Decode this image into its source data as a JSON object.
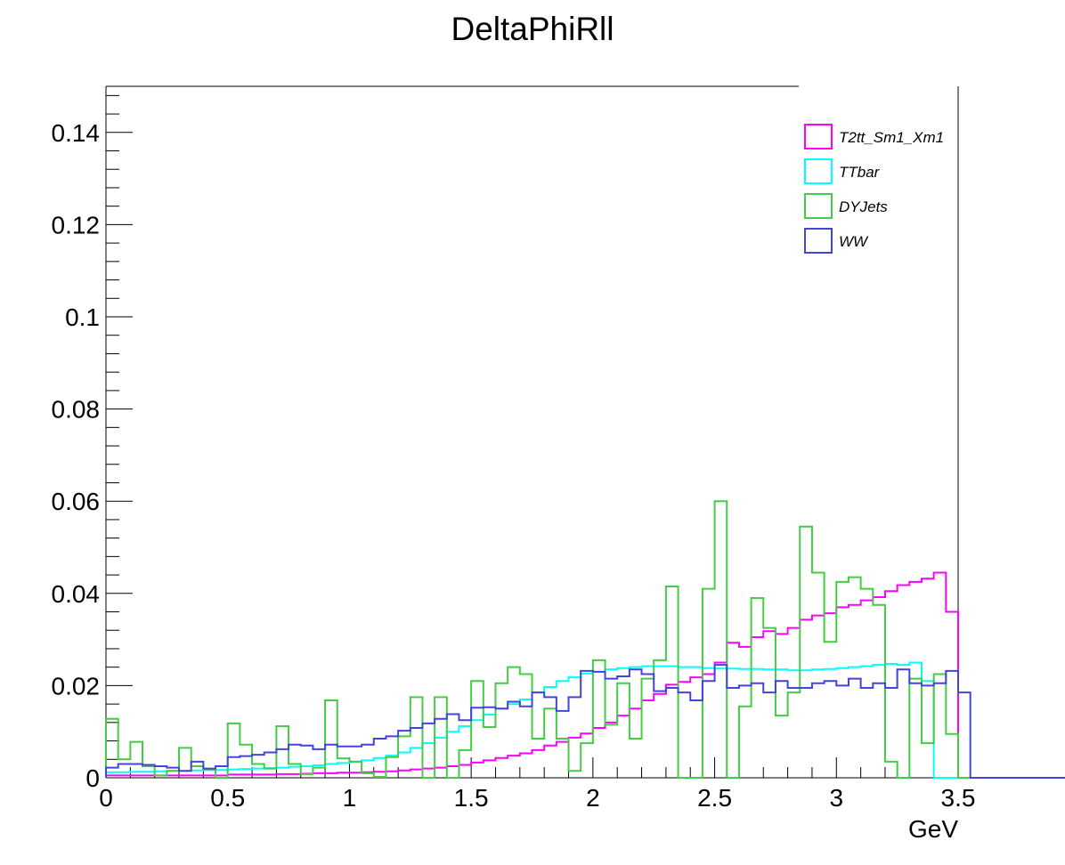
{
  "chart_data": {
    "type": "histogram",
    "title": "DeltaPhiRll",
    "xlabel": "GeV",
    "ylabel": "",
    "xlim": [
      0,
      3.5
    ],
    "ylim": [
      0,
      0.15
    ],
    "bin_width": 0.05,
    "x_ticks": [
      "0",
      "0.5",
      "1",
      "1.5",
      "2",
      "2.5",
      "3",
      "3.5"
    ],
    "y_ticks": [
      "0",
      "0.02",
      "0.04",
      "0.06",
      "0.08",
      "0.1",
      "0.12",
      "0.14"
    ],
    "legend_position": "top-right",
    "grid": false,
    "series": [
      {
        "name": "T2tt_Sm1_Xm1",
        "color": "#ff00ff",
        "values": [
          0.0005,
          0.0005,
          0.0005,
          0.0005,
          0.0005,
          0.0005,
          0.0005,
          0.0005,
          0.0005,
          0.0005,
          0.0007,
          0.0007,
          0.0007,
          0.0007,
          0.0008,
          0.0008,
          0.0009,
          0.001,
          0.001,
          0.0011,
          0.0011,
          0.0012,
          0.0013,
          0.0014,
          0.0016,
          0.0018,
          0.002,
          0.0022,
          0.0025,
          0.0028,
          0.0033,
          0.0038,
          0.0043,
          0.0048,
          0.0053,
          0.006,
          0.007,
          0.0078,
          0.0087,
          0.0096,
          0.0108,
          0.012,
          0.0135,
          0.015,
          0.0168,
          0.0182,
          0.0202,
          0.0208,
          0.0218,
          0.0225,
          0.025,
          0.0293,
          0.0284,
          0.0305,
          0.0318,
          0.0312,
          0.0325,
          0.0343,
          0.0352,
          0.0357,
          0.037,
          0.0375,
          0.0385,
          0.0392,
          0.0405,
          0.0418,
          0.0425,
          0.0432,
          0.0445,
          0.036,
          0.0,
          0.0,
          0.0,
          0.0,
          0.0,
          0.0,
          0.0,
          0.0,
          0.0,
          0.0
        ]
      },
      {
        "name": "TTbar",
        "color": "#00ffff",
        "values": [
          0.0012,
          0.0012,
          0.0013,
          0.0013,
          0.0014,
          0.0015,
          0.0015,
          0.0016,
          0.0017,
          0.0017,
          0.0018,
          0.0019,
          0.002,
          0.0021,
          0.0022,
          0.0024,
          0.0025,
          0.0027,
          0.003,
          0.0032,
          0.0035,
          0.0038,
          0.0043,
          0.0048,
          0.0055,
          0.0065,
          0.0075,
          0.0087,
          0.01,
          0.0112,
          0.0125,
          0.0137,
          0.015,
          0.016,
          0.017,
          0.0185,
          0.0197,
          0.021,
          0.0218,
          0.0226,
          0.023,
          0.0235,
          0.0238,
          0.024,
          0.0242,
          0.0242,
          0.0242,
          0.024,
          0.024,
          0.0238,
          0.0237,
          0.0237,
          0.0236,
          0.0236,
          0.0235,
          0.0235,
          0.0233,
          0.0233,
          0.0235,
          0.0236,
          0.0238,
          0.024,
          0.0242,
          0.0245,
          0.0247,
          0.0245,
          0.025,
          0.021,
          0.0,
          0.0,
          0.0,
          0.0,
          0.0,
          0.0,
          0.0,
          0.0,
          0.0,
          0.0,
          0.0,
          0.0
        ]
      },
      {
        "name": "DYJets",
        "color": "#44cc44",
        "values": [
          0.0128,
          0.004,
          0.0078,
          0.0025,
          0.0005,
          0.0015,
          0.0065,
          0.0025,
          0.0018,
          0.0,
          0.0118,
          0.0072,
          0.003,
          0.002,
          0.0112,
          0.003,
          0.0008,
          0.0022,
          0.0168,
          0.0042,
          0.0035,
          0.001,
          0.0002,
          0.0045,
          0.009,
          0.0175,
          0.0,
          0.0175,
          0.0,
          0.006,
          0.021,
          0.011,
          0.0205,
          0.024,
          0.0225,
          0.0085,
          0.015,
          0.0085,
          0.0015,
          0.0075,
          0.0255,
          0.0115,
          0.0205,
          0.0085,
          0.0215,
          0.0255,
          0.0415,
          0.0,
          0.0,
          0.041,
          0.06,
          0.0,
          0.0155,
          0.039,
          0.0325,
          0.0135,
          0.0185,
          0.0545,
          0.0445,
          0.0295,
          0.0425,
          0.0435,
          0.041,
          0.0375,
          0.0035,
          0.0,
          0.0215,
          0.0075,
          0.0225,
          0.0095,
          0.0,
          0.0,
          0.0,
          0.0,
          0.0,
          0.0,
          0.0,
          0.0,
          0.0,
          0.0
        ]
      },
      {
        "name": "WW",
        "color": "#4444dd",
        "values": [
          0.0022,
          0.003,
          0.003,
          0.0028,
          0.0025,
          0.0022,
          0.0015,
          0.0035,
          0.002,
          0.0025,
          0.0045,
          0.0047,
          0.005,
          0.0055,
          0.0062,
          0.0072,
          0.007,
          0.0062,
          0.0072,
          0.0068,
          0.0068,
          0.0072,
          0.0085,
          0.009,
          0.0102,
          0.0108,
          0.0118,
          0.0128,
          0.0138,
          0.0125,
          0.0152,
          0.0153,
          0.015,
          0.0165,
          0.0155,
          0.0185,
          0.0175,
          0.0145,
          0.0175,
          0.0232,
          0.023,
          0.0215,
          0.022,
          0.0235,
          0.0225,
          0.0188,
          0.0195,
          0.0185,
          0.0168,
          0.021,
          0.0245,
          0.0195,
          0.02,
          0.0205,
          0.0185,
          0.021,
          0.0195,
          0.0195,
          0.0205,
          0.021,
          0.02,
          0.0215,
          0.0195,
          0.0205,
          0.0195,
          0.0235,
          0.0205,
          0.02,
          0.0205,
          0.0232,
          0.0185,
          0.0,
          0.0,
          0.0,
          0.0,
          0.0,
          0.0,
          0.0,
          0.0,
          0.0
        ]
      }
    ]
  }
}
